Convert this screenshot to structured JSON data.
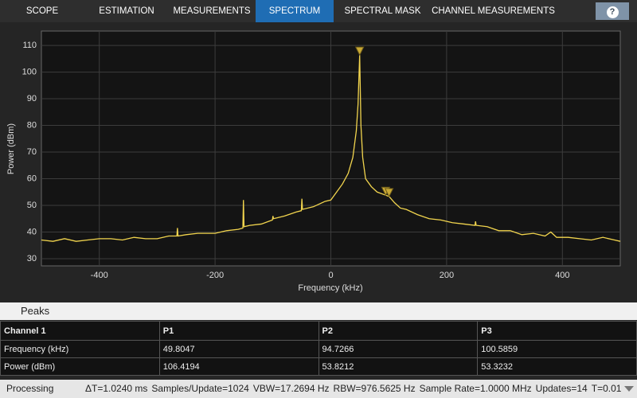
{
  "tabs": [
    "SCOPE",
    "ESTIMATION",
    "MEASUREMENTS",
    "SPECTRUM",
    "SPECTRAL MASK",
    "CHANNEL MEASUREMENTS"
  ],
  "help": "?",
  "chart_data": {
    "type": "line",
    "xlabel": "Frequency (kHz)",
    "ylabel": "Power (dBm)",
    "xlim": [
      -500,
      500
    ],
    "ylim": [
      27.3,
      115.4
    ],
    "xticks": [
      -400,
      -200,
      0,
      200,
      400
    ],
    "yticks": [
      30,
      40,
      50,
      60,
      70,
      80,
      90,
      100,
      110
    ],
    "grid": true,
    "x": [
      -500,
      -480,
      -460,
      -440,
      -420,
      -400,
      -380,
      -360,
      -340,
      -320,
      -300,
      -280,
      -266,
      -265,
      -264,
      -250,
      -230,
      -210,
      -200,
      -180,
      -160,
      -152,
      -151,
      -150,
      -140,
      -120,
      -101,
      -100,
      -99,
      -80,
      -60,
      -51,
      -50,
      -49,
      -30,
      -10,
      0,
      10,
      20,
      30,
      38,
      44,
      47,
      49.8047,
      52,
      55,
      60,
      70,
      80,
      94.7266,
      100.5859,
      110,
      120,
      130,
      150,
      170,
      190,
      210,
      230,
      249,
      250,
      251,
      270,
      290,
      310,
      330,
      350,
      370,
      380,
      390,
      410,
      430,
      450,
      470,
      490,
      500
    ],
    "series": [
      {
        "color": "#f2d54e",
        "values": [
          37,
          36.5,
          37.5,
          36.5,
          37,
          37.5,
          37.5,
          37,
          38,
          37.5,
          37.5,
          38.5,
          38.5,
          41.5,
          38.5,
          39,
          39.5,
          39.5,
          39.5,
          40.5,
          41,
          41.5,
          52,
          42,
          42.5,
          43,
          44.5,
          46,
          45,
          46,
          47.5,
          48,
          52.5,
          48.5,
          49.5,
          51.5,
          52,
          55,
          58,
          62,
          68,
          78,
          88,
          106.4194,
          80,
          68,
          60,
          57,
          55,
          53.8212,
          53.3232,
          51,
          49,
          48.5,
          46.5,
          45,
          44.5,
          43.5,
          43,
          42.5,
          44,
          42.5,
          42,
          40.5,
          40.5,
          39,
          39.5,
          38.5,
          40,
          38,
          38,
          37.5,
          37,
          38,
          37,
          36.5
        ]
      }
    ]
  },
  "peaks": {
    "title": "Peaks",
    "columns": [
      "Channel 1",
      "P1",
      "P2",
      "P3"
    ],
    "rows": [
      [
        "Frequency (kHz)",
        49.8047,
        94.7266,
        100.5859
      ],
      [
        "Power (dBm)",
        106.4194,
        53.8212,
        53.3232
      ]
    ]
  },
  "status": [
    "Processing",
    "ΔT=1.0240 ms",
    "Samples/Update=1024",
    "VBW=17.2694 Hz",
    "RBW=976.5625 Hz",
    "Sample Rate=1.0000 MHz",
    "Updates=14",
    "T=0.01"
  ]
}
